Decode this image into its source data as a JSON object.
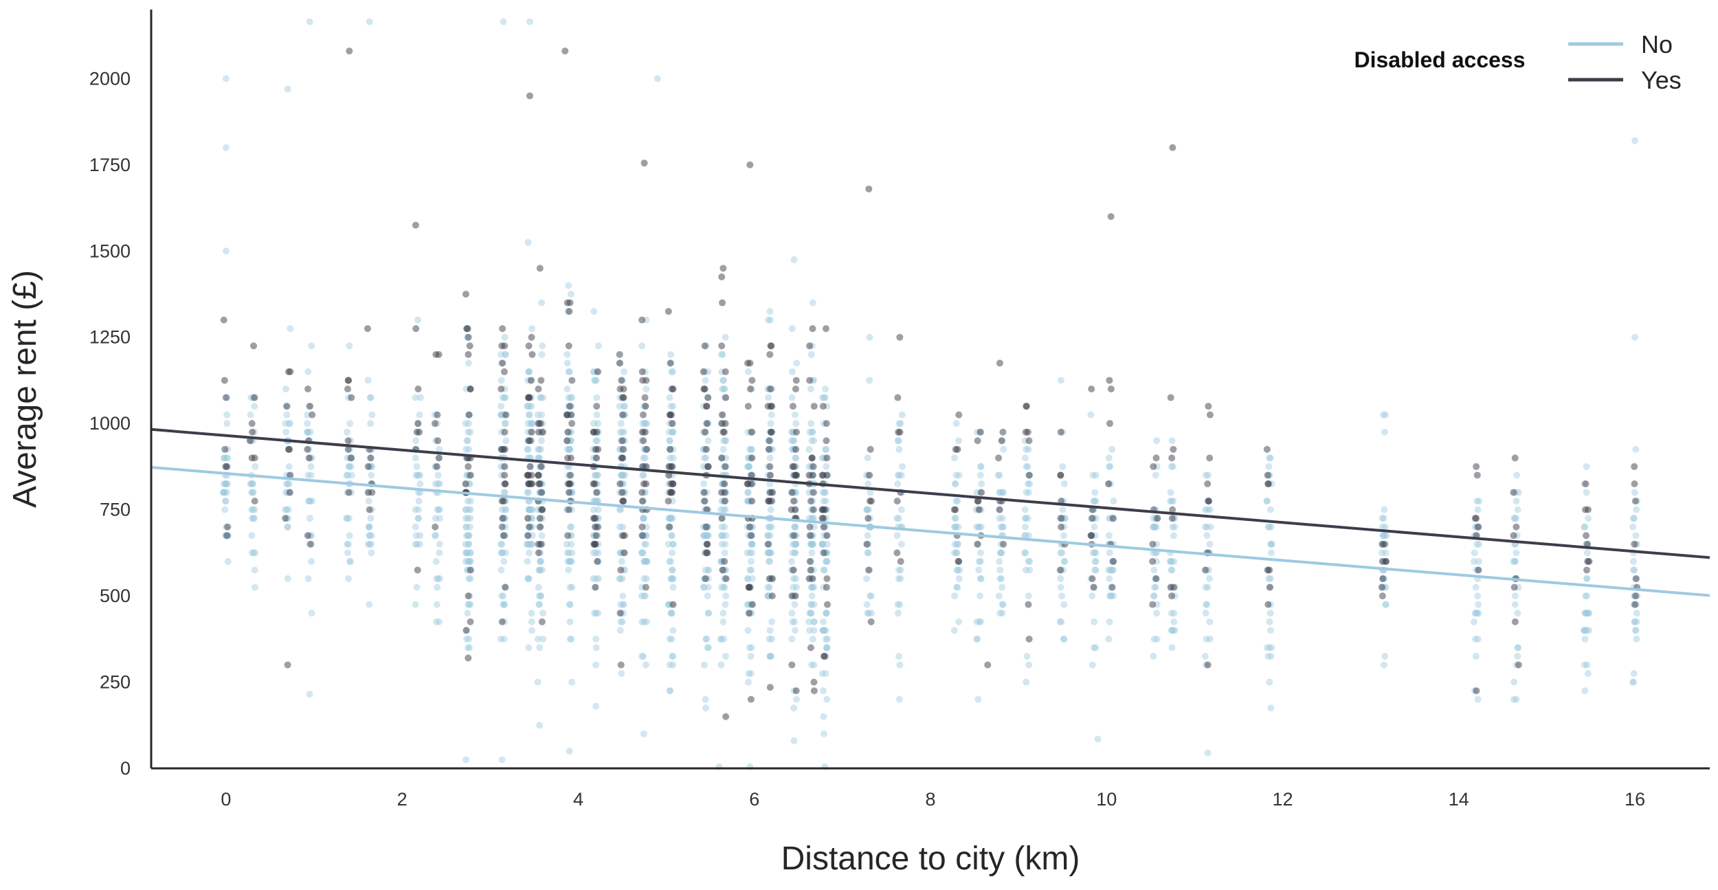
{
  "chart_data": {
    "type": "scatter",
    "title": "",
    "xlabel": "Distance to city (km)",
    "ylabel": "Average rent (£)",
    "xlim": [
      -0.85,
      16.85
    ],
    "ylim": [
      0,
      2200
    ],
    "x_ticks": [
      0,
      2,
      4,
      6,
      8,
      10,
      12,
      14,
      16
    ],
    "y_ticks": [
      0,
      250,
      500,
      750,
      1000,
      1250,
      1500,
      1750,
      2000
    ],
    "grid": false,
    "legend": {
      "title": "Disabled access",
      "placement": "top-right",
      "entries": [
        "No",
        "Yes"
      ]
    },
    "distance_stations": [
      0,
      0.3,
      0.7,
      0.95,
      1.4,
      1.63,
      2.18,
      2.4,
      2.75,
      3.15,
      3.45,
      3.57,
      3.9,
      4.2,
      4.5,
      4.75,
      5.05,
      5.45,
      5.65,
      5.95,
      6.18,
      6.45,
      6.65,
      6.8,
      7.3,
      7.65,
      8.3,
      8.55,
      8.8,
      9.1,
      9.5,
      9.85,
      10.05,
      10.55,
      10.75,
      11.15,
      11.85,
      13.15,
      14.2,
      14.65,
      15.45,
      16.0
    ],
    "series": [
      {
        "name": "No",
        "color": "#9ecae1",
        "marker": "circle",
        "alpha": 0.45,
        "regression": {
          "slope": -21.0,
          "intercept": 855,
          "x_range": [
            -0.85,
            16.85
          ]
        }
      },
      {
        "name": "Yes",
        "color": "#3d3d4a",
        "marker": "circle",
        "alpha": 0.5,
        "regression": {
          "slope": -21.0,
          "intercept": 965,
          "x_range": [
            -0.85,
            16.85
          ]
        }
      }
    ],
    "sample_points": [
      {
        "series": "No",
        "x": 0,
        "y": 2000
      },
      {
        "series": "No",
        "x": 0,
        "y": 1800
      },
      {
        "series": "No",
        "x": 0,
        "y": 1500
      },
      {
        "series": "No",
        "x": 0.7,
        "y": 1970
      },
      {
        "series": "No",
        "x": 0.95,
        "y": 2165
      },
      {
        "series": "No",
        "x": 1.63,
        "y": 2165
      },
      {
        "series": "Yes",
        "x": 1.4,
        "y": 2080
      },
      {
        "series": "Yes",
        "x": 3.45,
        "y": 1950
      },
      {
        "series": "Yes",
        "x": 3.85,
        "y": 2080
      },
      {
        "series": "No",
        "x": 3.15,
        "y": 2165
      },
      {
        "series": "No",
        "x": 3.45,
        "y": 2165
      },
      {
        "series": "No",
        "x": 4.9,
        "y": 2000
      },
      {
        "series": "Yes",
        "x": 4.75,
        "y": 1755
      },
      {
        "series": "Yes",
        "x": 5.95,
        "y": 1750
      },
      {
        "series": "Yes",
        "x": 7.3,
        "y": 1680
      },
      {
        "series": "Yes",
        "x": 10.05,
        "y": 1600
      },
      {
        "series": "Yes",
        "x": 10.75,
        "y": 1800
      },
      {
        "series": "No",
        "x": 16.0,
        "y": 1820
      },
      {
        "series": "No",
        "x": 16.0,
        "y": 1250
      },
      {
        "series": "Yes",
        "x": 0.7,
        "y": 300
      },
      {
        "series": "No",
        "x": 0.95,
        "y": 215
      },
      {
        "series": "No",
        "x": 3.9,
        "y": 50
      },
      {
        "series": "No",
        "x": 4.2,
        "y": 180
      },
      {
        "series": "No",
        "x": 5.6,
        "y": 5
      },
      {
        "series": "No",
        "x": 5.95,
        "y": 5
      },
      {
        "series": "No",
        "x": 6.45,
        "y": 80
      },
      {
        "series": "Yes",
        "x": 6.18,
        "y": 235
      },
      {
        "series": "No",
        "x": 6.8,
        "y": 5
      },
      {
        "series": "No",
        "x": 9.9,
        "y": 85
      },
      {
        "series": "No",
        "x": 11.15,
        "y": 45
      },
      {
        "series": "No",
        "x": 11.85,
        "y": 250
      },
      {
        "series": "No",
        "x": 13.15,
        "y": 300
      },
      {
        "series": "Yes",
        "x": 2.75,
        "y": 320
      },
      {
        "series": "Yes",
        "x": 8.65,
        "y": 300
      },
      {
        "series": "Yes",
        "x": 11.15,
        "y": 300
      }
    ]
  }
}
